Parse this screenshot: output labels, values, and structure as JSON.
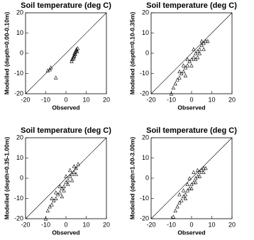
{
  "chart_data": [
    {
      "type": "scatter",
      "title": "Soil temperature (deg C)",
      "x_label": "Observed",
      "y_label": "Modelled (depth=0.00-0.10m)",
      "color": "#000000",
      "x": [
        3,
        3.5,
        4,
        4.2,
        4.5,
        4.8,
        5,
        5.2,
        5.5,
        3.8,
        4.6,
        5.8,
        -8,
        -9,
        -7.5,
        -5,
        2.8,
        4.1
      ],
      "y": [
        -3,
        -2,
        -1,
        0,
        0.5,
        1,
        1.5,
        2,
        1,
        -2.5,
        -0.5,
        2.5,
        -8,
        -8.5,
        -7,
        -12,
        -4,
        -1.5
      ],
      "xlim": [
        -20,
        20
      ],
      "ylim": [
        -20,
        20
      ],
      "xticks": [
        -20,
        -10,
        0,
        10,
        20
      ],
      "yticks": [
        -20,
        -10,
        0,
        10,
        20
      ]
    },
    {
      "type": "scatter",
      "title": "Soil temperature (deg C)",
      "x_label": "Observed",
      "y_label": "Modelled (depth=0.10-0.35m)",
      "color": "#000000",
      "x": [
        -10,
        -9,
        -8,
        -7,
        -6,
        -5,
        -4,
        -3,
        -2,
        -1,
        0,
        1,
        2,
        3,
        4,
        5,
        6,
        7,
        8,
        -6,
        -4,
        -2,
        0,
        2,
        4,
        6,
        -3,
        1,
        3,
        5
      ],
      "y": [
        -20,
        -17,
        -15,
        -13,
        -12,
        -10,
        -9,
        -7,
        -6,
        -4,
        -3,
        -2,
        0,
        1,
        2,
        4,
        5,
        6,
        6,
        -9,
        -6,
        -3,
        -6,
        -3,
        0,
        2,
        -11,
        2,
        -2,
        6
      ],
      "xlim": [
        -20,
        20
      ],
      "ylim": [
        -20,
        20
      ],
      "xticks": [
        -20,
        -10,
        0,
        10,
        20
      ],
      "yticks": [
        -20,
        -10,
        0,
        10,
        20
      ]
    },
    {
      "type": "scatter",
      "title": "Soil temperature (deg C)",
      "x_label": "Observed",
      "y_label": "Modelled (depth=0.35-1.00m)",
      "color": "#000000",
      "x": [
        -10,
        -9,
        -8,
        -7,
        -6,
        -5,
        -4,
        -3,
        -2,
        -1,
        0,
        1,
        2,
        3,
        4,
        5,
        6,
        -7,
        -5,
        -3,
        -1,
        1,
        3,
        5,
        -2,
        0,
        2,
        4
      ],
      "y": [
        -20,
        -16,
        -14,
        -13,
        -11,
        -10,
        -8,
        -7,
        -5,
        -4,
        -2,
        -1,
        1,
        2,
        3,
        5,
        7,
        -10,
        -7,
        -4,
        -6,
        -3,
        -1,
        2,
        -9,
        1,
        4,
        6
      ],
      "xlim": [
        -20,
        20
      ],
      "ylim": [
        -20,
        20
      ],
      "xticks": [
        -20,
        -10,
        0,
        10,
        20
      ],
      "yticks": [
        -20,
        -10,
        0,
        10,
        20
      ]
    },
    {
      "type": "scatter",
      "title": "Soil temperature (deg C)",
      "x_label": "Observed",
      "y_label": "Modelled (depth=1.00-3.00m)",
      "color": "#000000",
      "x": [
        -9,
        -8,
        -7,
        -6,
        -5,
        -4,
        -3,
        -2,
        -1,
        0,
        1,
        2,
        3,
        4,
        5,
        6,
        7,
        -6,
        -4,
        -2,
        0,
        2,
        4,
        6,
        -3,
        -1,
        1,
        3
      ],
      "y": [
        -19,
        -16,
        -14,
        -12,
        -11,
        -9,
        -8,
        -6,
        -5,
        -3,
        -2,
        0,
        1,
        3,
        4,
        5,
        5,
        -8,
        -6,
        -3,
        -5,
        -2,
        1,
        3,
        -10,
        0,
        3,
        4
      ],
      "xlim": [
        -20,
        20
      ],
      "ylim": [
        -20,
        20
      ],
      "xticks": [
        -20,
        -10,
        0,
        10,
        20
      ],
      "yticks": [
        -20,
        -10,
        0,
        10,
        20
      ]
    }
  ]
}
